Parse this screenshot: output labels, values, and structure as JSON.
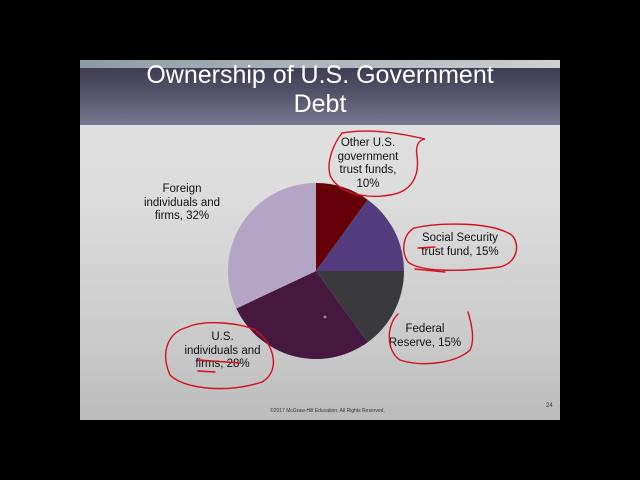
{
  "slide": {
    "title_line1": "Ownership of U.S. Government",
    "title_line2": "Debt",
    "footer": "©2017 McGraw-Hill Education. All Rights Reserved.",
    "page_number": "24"
  },
  "labels": {
    "other": [
      "Other U.S.",
      "government",
      "trust funds,",
      "10%"
    ],
    "social": [
      "Social Security",
      "trust fund, 15%"
    ],
    "fed": [
      "Federal",
      "Reserve, 15%"
    ],
    "us": [
      "U.S.",
      "individuals and",
      "firms, 28%"
    ],
    "foreign": [
      "Foreign",
      "individuals and",
      "firms, 32%"
    ]
  },
  "colors": {
    "other": "#650008",
    "social": "#543d7f",
    "fed": "#3a3a3e",
    "us": "#47183f",
    "foreign": "#b4a4c6",
    "annotation": "#d41020"
  },
  "chart_data": {
    "type": "pie",
    "title": "Ownership of U.S. Government Debt",
    "categories": [
      "Other U.S. government trust funds",
      "Social Security trust fund",
      "Federal Reserve",
      "U.S. individuals and firms",
      "Foreign individuals and firms"
    ],
    "values": [
      10,
      15,
      15,
      28,
      32
    ],
    "unit": "%",
    "start_angle": "12 o'clock, clockwise",
    "legend": "none (data labels outside slices)"
  }
}
